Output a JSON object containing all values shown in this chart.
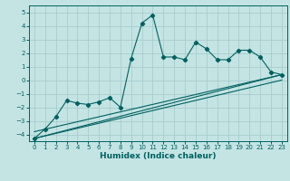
{
  "xlabel": "Humidex (Indice chaleur)",
  "bg_color": "#c4e4e4",
  "grid_color": "#a8cccc",
  "line_color": "#006060",
  "xlim": [
    -0.5,
    23.5
  ],
  "ylim": [
    -4.5,
    5.5
  ],
  "xticks": [
    0,
    1,
    2,
    3,
    4,
    5,
    6,
    7,
    8,
    9,
    10,
    11,
    12,
    13,
    14,
    15,
    16,
    17,
    18,
    19,
    20,
    21,
    22,
    23
  ],
  "yticks": [
    -4,
    -3,
    -2,
    -1,
    0,
    1,
    2,
    3,
    4,
    5
  ],
  "curve1_x": [
    0,
    1,
    2,
    3,
    4,
    5,
    6,
    7,
    8,
    9,
    10,
    11,
    12,
    13,
    14,
    15,
    16,
    17,
    18,
    19,
    20,
    21,
    22,
    23
  ],
  "curve1_y": [
    -4.3,
    -3.6,
    -2.7,
    -1.5,
    -1.7,
    -1.8,
    -1.6,
    -1.3,
    -2.0,
    1.6,
    4.2,
    4.8,
    1.7,
    1.7,
    1.5,
    2.8,
    2.3,
    1.5,
    1.5,
    2.2,
    2.2,
    1.7,
    0.6,
    0.4
  ],
  "line2_x": [
    0,
    23
  ],
  "line2_y": [
    -4.3,
    0.4
  ],
  "line3_x": [
    0,
    23
  ],
  "line3_y": [
    -4.3,
    0.0
  ],
  "line4_x": [
    0,
    23
  ],
  "line4_y": [
    -3.8,
    0.4
  ]
}
